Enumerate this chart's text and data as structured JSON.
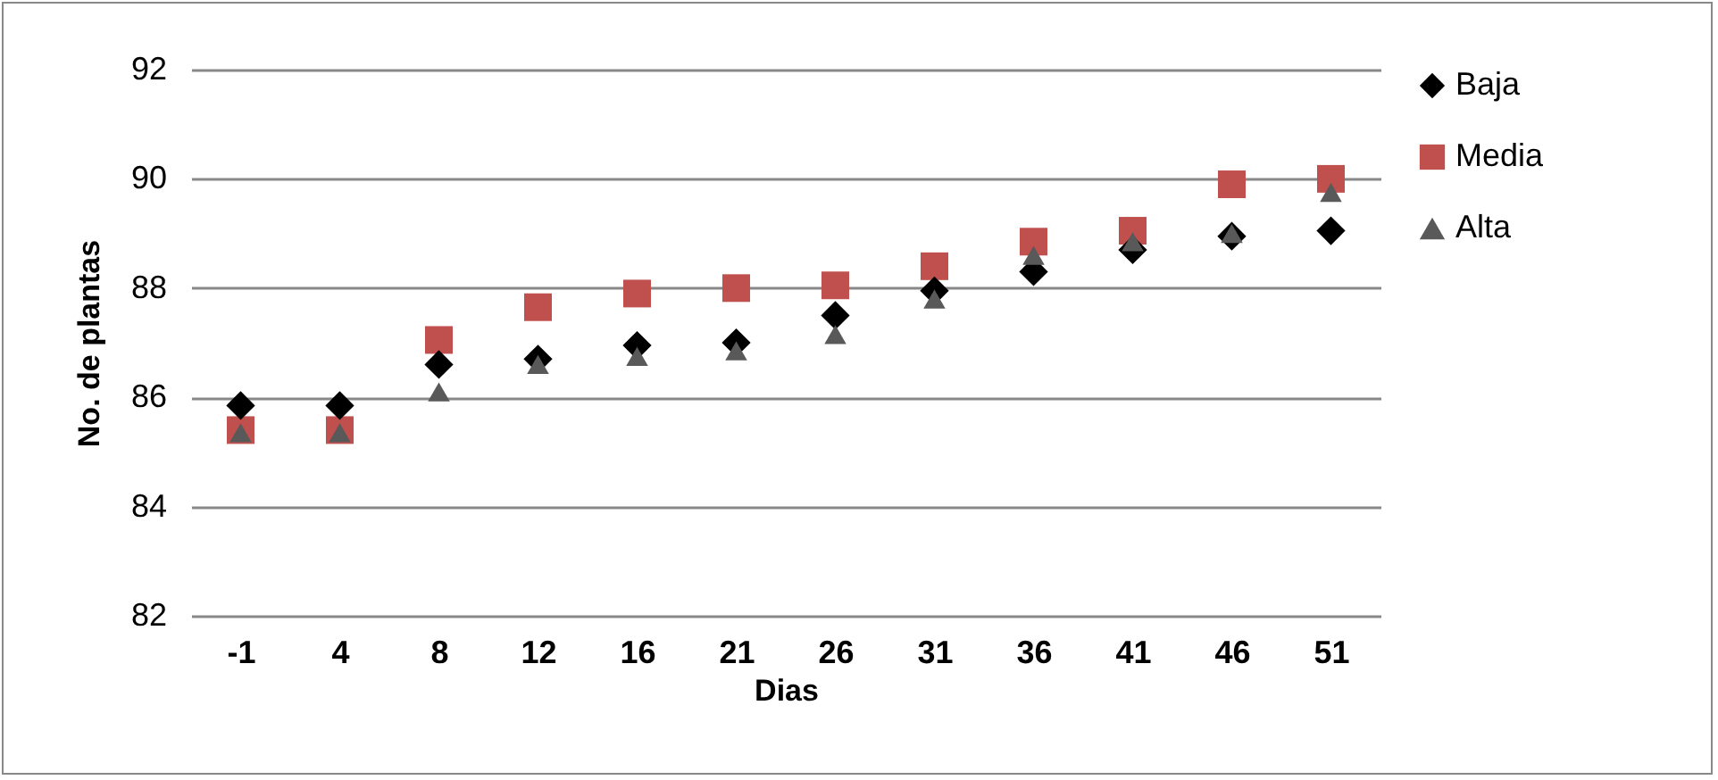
{
  "chart_data": {
    "type": "scatter",
    "xlabel": "Dias",
    "ylabel": "No. de plantas",
    "categories": [
      "-1",
      "4",
      "8",
      "12",
      "16",
      "21",
      "26",
      "31",
      "36",
      "41",
      "46",
      "51"
    ],
    "series": [
      {
        "name": "Baja",
        "color": "#000000",
        "marker": "diamond",
        "values": [
          85.85,
          85.85,
          86.6,
          86.7,
          86.95,
          87.0,
          87.5,
          87.95,
          88.3,
          88.7,
          88.95,
          89.05
        ]
      },
      {
        "name": "Media",
        "color": "#c0504d",
        "marker": "square",
        "values": [
          85.4,
          85.4,
          87.05,
          87.65,
          87.9,
          88.0,
          88.05,
          88.4,
          88.85,
          89.05,
          89.9,
          90.0
        ]
      },
      {
        "name": "Alta",
        "color": "#595959",
        "marker": "triangle",
        "values": [
          85.35,
          85.35,
          86.1,
          86.6,
          86.75,
          86.85,
          87.15,
          87.8,
          88.6,
          88.85,
          89.0,
          89.75
        ]
      }
    ],
    "ylim": [
      82,
      92
    ],
    "yticks": [
      82,
      84,
      86,
      88,
      90,
      92
    ],
    "grid": "y",
    "legend": "right"
  }
}
